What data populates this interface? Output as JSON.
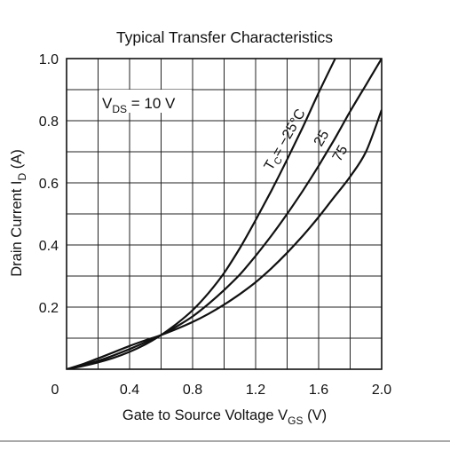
{
  "chart_data": {
    "type": "line",
    "title": "Typical Transfer Characteristics",
    "xlabel": {
      "main": "Gate to Source Voltage  V",
      "sub": "GS",
      "unit": "  (V)"
    },
    "ylabel": {
      "main": "Drain Current  I",
      "sub": "D",
      "unit": "  (A)"
    },
    "xlim": [
      0,
      2.0
    ],
    "ylim": [
      0,
      1.0
    ],
    "grid": true,
    "x_ticks": [
      {
        "value": 0,
        "label": "0"
      },
      {
        "value": 0.4,
        "label": "0.4"
      },
      {
        "value": 0.8,
        "label": "0.8"
      },
      {
        "value": 1.2,
        "label": "1.2"
      },
      {
        "value": 1.6,
        "label": "1.6"
      },
      {
        "value": 2.0,
        "label": "2.0"
      }
    ],
    "y_ticks": [
      {
        "value": 0.2,
        "label": "0.2"
      },
      {
        "value": 0.4,
        "label": "0.4"
      },
      {
        "value": 0.6,
        "label": "0.6"
      },
      {
        "value": 0.8,
        "label": "0.8"
      },
      {
        "value": 1.0,
        "label": "1.0"
      }
    ],
    "condition_annotation": {
      "main": "V",
      "sub": "DS",
      "rest": " = 10 V"
    },
    "series_label_prefix": {
      "main": "T",
      "sub": "C"
    },
    "series": [
      {
        "name": "= −25°C",
        "x": [
          0,
          0.1,
          0.2,
          0.3,
          0.4,
          0.5,
          0.6,
          0.7,
          0.8,
          0.9,
          1.0,
          1.1,
          1.2,
          1.3,
          1.4,
          1.5,
          1.6,
          1.7,
          1.8
        ],
        "y": [
          0,
          0.01,
          0.022,
          0.037,
          0.056,
          0.08,
          0.11,
          0.147,
          0.19,
          0.245,
          0.31,
          0.39,
          0.48,
          0.575,
          0.675,
          0.78,
          0.89,
          0.995,
          1.1
        ]
      },
      {
        "name": "25",
        "x": [
          0,
          0.1,
          0.2,
          0.3,
          0.4,
          0.5,
          0.6,
          0.7,
          0.8,
          0.9,
          1.0,
          1.1,
          1.2,
          1.3,
          1.4,
          1.5,
          1.6,
          1.7,
          1.8,
          1.9,
          2.0
        ],
        "y": [
          0,
          0.012,
          0.027,
          0.045,
          0.065,
          0.087,
          0.11,
          0.138,
          0.17,
          0.21,
          0.255,
          0.305,
          0.365,
          0.43,
          0.5,
          0.575,
          0.655,
          0.74,
          0.83,
          0.915,
          1.0
        ]
      },
      {
        "name": "75",
        "x": [
          0,
          0.1,
          0.2,
          0.3,
          0.4,
          0.5,
          0.6,
          0.7,
          0.8,
          0.9,
          1.0,
          1.1,
          1.2,
          1.3,
          1.4,
          1.5,
          1.6,
          1.7,
          1.8,
          1.9,
          2.0
        ],
        "y": [
          0,
          0.016,
          0.035,
          0.055,
          0.075,
          0.093,
          0.11,
          0.13,
          0.152,
          0.178,
          0.208,
          0.242,
          0.28,
          0.325,
          0.375,
          0.43,
          0.49,
          0.555,
          0.62,
          0.7,
          0.835
        ]
      }
    ]
  }
}
